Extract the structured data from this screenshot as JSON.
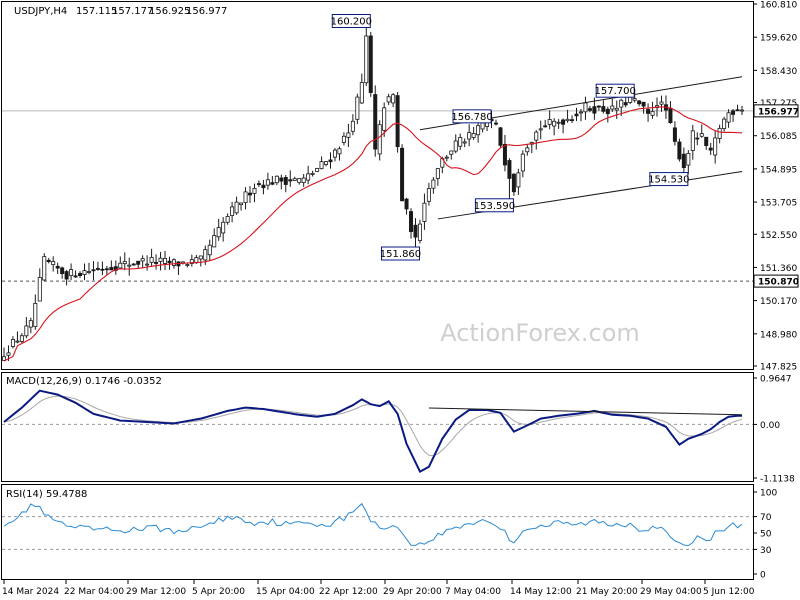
{
  "header": {
    "symbol": "USDJPY,H4",
    "open": "157.115",
    "high": "157.177",
    "low": "156.925",
    "close": "156.977"
  },
  "watermark": "ActionForex.com",
  "colors": {
    "candle": "#1a1a1a",
    "ma": "#d9141e",
    "macd_main": "#0b1a82",
    "macd_signal": "#a8a8a8",
    "rsi": "#2a8ad4",
    "trend": "#1a1a1a",
    "box_border": "#0b1a82"
  },
  "chart_data": [
    {
      "type": "candlestick",
      "panel": "price",
      "ylim": [
        147.825,
        160.81
      ],
      "y_ticks": [
        "160.810",
        "159.620",
        "158.430",
        "157.275",
        "156.085",
        "154.895",
        "153.705",
        "152.550",
        "151.360",
        "150.170",
        "148.980",
        "147.825"
      ],
      "x_ticks": [
        "14 Mar 2024",
        "22 Mar 04:00",
        "29 Mar 12:00",
        "5 Apr 20:00",
        "15 Apr 04:00",
        "22 Apr 12:00",
        "29 Apr 20:00",
        "7 May 04:00",
        "14 May 12:00",
        "21 May 20:00",
        "29 May 04:00",
        "5 Jun 12:00"
      ],
      "current_price": {
        "value": 156.977,
        "label": "156.977"
      },
      "level_line": {
        "value": 150.87,
        "label": "150.870"
      },
      "swing_labels": [
        {
          "value": 160.2,
          "label": "160.200",
          "bar": 81
        },
        {
          "value": 151.86,
          "label": "151.860",
          "bar": 92
        },
        {
          "value": 156.78,
          "label": "156.780",
          "bar": 108
        },
        {
          "value": 153.59,
          "label": "153.590",
          "bar": 113
        },
        {
          "value": 157.7,
          "label": "157.700",
          "bar": 140
        },
        {
          "value": 154.53,
          "label": "154.530",
          "bar": 152
        }
      ],
      "channel": [
        {
          "from": [
            93,
            156.3
          ],
          "to": [
            165,
            158.2
          ]
        },
        {
          "from": [
            97,
            153.1
          ],
          "to": [
            165,
            154.8
          ]
        }
      ],
      "close_anchors": [
        [
          0,
          148.3
        ],
        [
          6,
          149.3
        ],
        [
          9,
          151.6
        ],
        [
          14,
          151.1
        ],
        [
          24,
          151.4
        ],
        [
          32,
          151.6
        ],
        [
          39,
          151.5
        ],
        [
          44,
          151.6
        ],
        [
          50,
          153.2
        ],
        [
          56,
          154.3
        ],
        [
          61,
          154.5
        ],
        [
          67,
          154.5
        ],
        [
          73,
          155.3
        ],
        [
          77,
          156.2
        ],
        [
          80,
          157.9
        ],
        [
          81,
          159.6
        ],
        [
          83,
          155.5
        ],
        [
          85,
          157.2
        ],
        [
          87,
          157.5
        ],
        [
          89,
          153.8
        ],
        [
          92,
          152.3
        ],
        [
          94,
          153.8
        ],
        [
          97,
          155.0
        ],
        [
          101,
          155.8
        ],
        [
          105,
          156.1
        ],
        [
          108,
          156.7
        ],
        [
          110,
          156.4
        ],
        [
          112,
          155.2
        ],
        [
          114,
          154.2
        ],
        [
          116,
          155.6
        ],
        [
          120,
          156.4
        ],
        [
          126,
          156.7
        ],
        [
          130,
          157.1
        ],
        [
          136,
          157.0
        ],
        [
          140,
          157.4
        ],
        [
          142,
          157.2
        ],
        [
          144,
          156.8
        ],
        [
          146,
          157.3
        ],
        [
          148,
          157.0
        ],
        [
          150,
          155.8
        ],
        [
          152,
          155.0
        ],
        [
          154,
          156.1
        ],
        [
          156,
          156.0
        ],
        [
          158,
          155.4
        ],
        [
          160,
          156.4
        ],
        [
          162,
          156.9
        ],
        [
          164,
          157.1
        ]
      ]
    },
    {
      "type": "line",
      "panel": "macd",
      "title": "MACD(12,26,9) 0.1746 -0.0352",
      "ylim": [
        -1.1138,
        0.9647
      ],
      "y_ticks": [
        "0.9647",
        "0.00",
        "-1.1138"
      ],
      "anchors": [
        [
          0,
          0.05
        ],
        [
          4,
          0.35
        ],
        [
          8,
          0.7
        ],
        [
          12,
          0.62
        ],
        [
          16,
          0.45
        ],
        [
          20,
          0.22
        ],
        [
          26,
          0.08
        ],
        [
          32,
          0.05
        ],
        [
          38,
          0.02
        ],
        [
          44,
          0.12
        ],
        [
          50,
          0.28
        ],
        [
          54,
          0.35
        ],
        [
          58,
          0.32
        ],
        [
          62,
          0.26
        ],
        [
          66,
          0.2
        ],
        [
          70,
          0.16
        ],
        [
          74,
          0.22
        ],
        [
          78,
          0.4
        ],
        [
          80,
          0.52
        ],
        [
          82,
          0.42
        ],
        [
          84,
          0.38
        ],
        [
          86,
          0.48
        ],
        [
          88,
          0.22
        ],
        [
          90,
          -0.4
        ],
        [
          93,
          -0.98
        ],
        [
          95,
          -0.88
        ],
        [
          98,
          -0.3
        ],
        [
          101,
          0.1
        ],
        [
          104,
          0.3
        ],
        [
          108,
          0.3
        ],
        [
          111,
          0.24
        ],
        [
          114,
          -0.15
        ],
        [
          117,
          -0.02
        ],
        [
          120,
          0.12
        ],
        [
          124,
          0.18
        ],
        [
          128,
          0.22
        ],
        [
          132,
          0.28
        ],
        [
          136,
          0.2
        ],
        [
          140,
          0.18
        ],
        [
          144,
          0.12
        ],
        [
          148,
          -0.05
        ],
        [
          151,
          -0.42
        ],
        [
          153,
          -0.3
        ],
        [
          156,
          -0.2
        ],
        [
          158,
          -0.1
        ],
        [
          160,
          0.05
        ],
        [
          162,
          0.16
        ],
        [
          164,
          0.18
        ]
      ]
    },
    {
      "type": "line",
      "panel": "rsi",
      "title": "RSI(14) 59.4788",
      "ylim": [
        0,
        100
      ],
      "y_ticks": [
        "100",
        "70",
        "50",
        "30",
        "0"
      ],
      "levels": [
        70,
        30
      ],
      "anchors": [
        [
          0,
          62
        ],
        [
          4,
          72
        ],
        [
          6,
          85
        ],
        [
          8,
          80
        ],
        [
          10,
          68
        ],
        [
          14,
          58
        ],
        [
          18,
          55
        ],
        [
          22,
          54
        ],
        [
          26,
          53
        ],
        [
          30,
          55
        ],
        [
          34,
          56
        ],
        [
          38,
          53
        ],
        [
          40,
          48
        ],
        [
          42,
          58
        ],
        [
          46,
          60
        ],
        [
          50,
          70
        ],
        [
          52,
          68
        ],
        [
          56,
          63
        ],
        [
          60,
          64
        ],
        [
          64,
          60
        ],
        [
          68,
          63
        ],
        [
          72,
          60
        ],
        [
          76,
          68
        ],
        [
          78,
          74
        ],
        [
          80,
          88
        ],
        [
          82,
          65
        ],
        [
          84,
          55
        ],
        [
          86,
          60
        ],
        [
          88,
          56
        ],
        [
          90,
          45
        ],
        [
          92,
          33
        ],
        [
          94,
          38
        ],
        [
          96,
          44
        ],
        [
          100,
          55
        ],
        [
          104,
          62
        ],
        [
          108,
          66
        ],
        [
          110,
          60
        ],
        [
          112,
          50
        ],
        [
          114,
          38
        ],
        [
          116,
          55
        ],
        [
          120,
          58
        ],
        [
          124,
          62
        ],
        [
          128,
          60
        ],
        [
          132,
          64
        ],
        [
          136,
          60
        ],
        [
          140,
          62
        ],
        [
          142,
          55
        ],
        [
          146,
          58
        ],
        [
          150,
          40
        ],
        [
          152,
          32
        ],
        [
          154,
          42
        ],
        [
          156,
          44
        ],
        [
          158,
          45
        ],
        [
          160,
          52
        ],
        [
          162,
          58
        ],
        [
          164,
          60
        ]
      ]
    }
  ]
}
